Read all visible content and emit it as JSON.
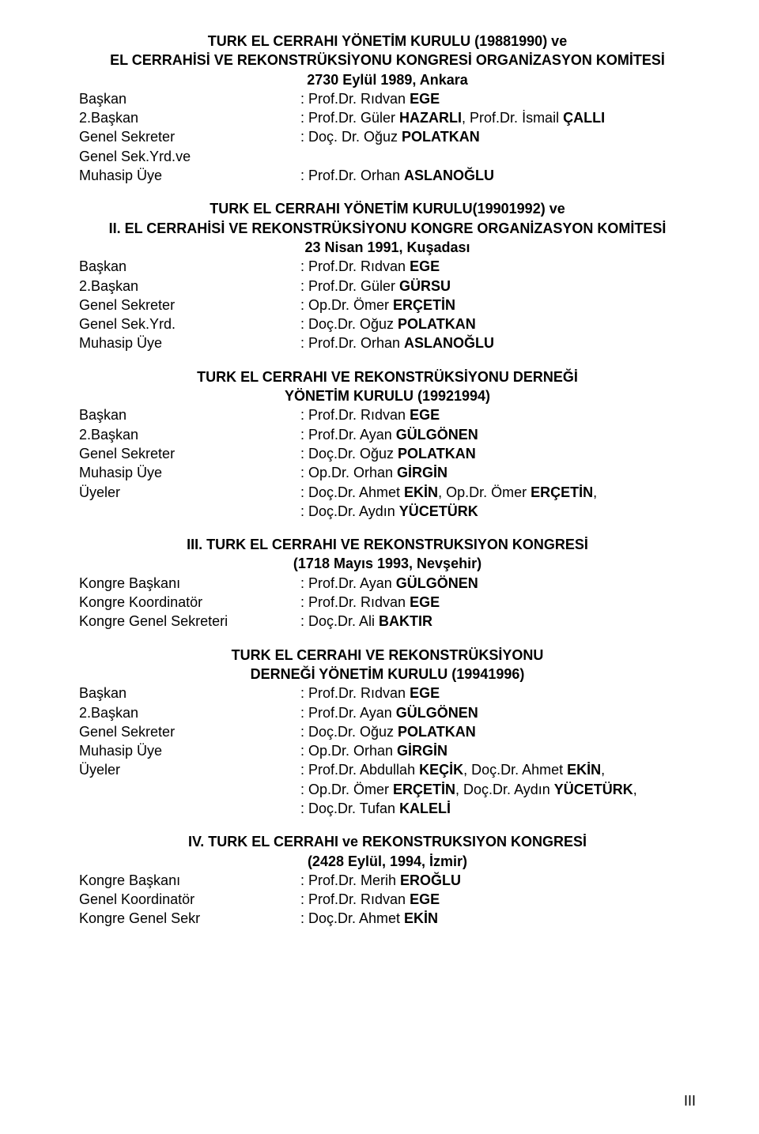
{
  "sections": [
    {
      "titles": [
        "TURK EL CERRAHI YÖNETİM KURULU (19881990) ve",
        "EL CERRAHİSİ VE REKONSTRÜKSİYONU KONGRESİ ORGANİZASYON KOMİTESİ",
        "2730 Eylül 1989, Ankara"
      ],
      "rows": [
        {
          "label": "Başkan",
          "prefix": ": Prof.Dr. Rıdvan ",
          "name": "EGE"
        },
        {
          "label": "2.Başkan",
          "prefix": ": Prof.Dr. Güler ",
          "name": "HAZARLI",
          ", Prof.Dr. İsmail ": true,
          "suffixName": "ÇALLI"
        },
        {
          "label": "Genel Sekreter",
          "prefix": ": Doç. Dr. Oğuz ",
          "name": "POLATKAN"
        },
        {
          "label": "Genel Sek.Yrd.ve",
          "prefix": "",
          "name": ""
        },
        {
          "label": "Muhasip Üye",
          "prefix": ": Prof.Dr. Orhan ",
          "name": "ASLANOĞLU"
        }
      ]
    },
    {
      "titles": [
        "TURK EL CERRAHI YÖNETİM KURULU(19901992) ve",
        "II. EL CERRAHİSİ VE REKONSTRÜKSİYONU KONGRE ORGANİZASYON KOMİTESİ",
        "23 Nisan 1991, Kuşadası"
      ],
      "rows": [
        {
          "label": "Başkan",
          "prefix": ": Prof.Dr. Rıdvan ",
          "name": "EGE"
        },
        {
          "label": "2.Başkan",
          "prefix": ": Prof.Dr. Güler ",
          "name": "GÜRSU"
        },
        {
          "label": "Genel Sekreter",
          "prefix": ": Op.Dr. Ömer ",
          "name": "ERÇETİN"
        },
        {
          "label": "Genel Sek.Yrd.",
          "prefix": ": Doç.Dr. Oğuz ",
          "name": "POLATKAN"
        },
        {
          "label": "Muhasip Üye",
          "prefix": ": Prof.Dr. Orhan ",
          "name": "ASLANOĞLU"
        }
      ]
    },
    {
      "titles": [
        "TURK EL CERRAHI VE REKONSTRÜKSİYONU DERNEĞİ",
        "YÖNETİM KURULU (19921994)"
      ],
      "rows": [
        {
          "label": "Başkan",
          "prefix": ": Prof.Dr. Rıdvan ",
          "name": "EGE"
        },
        {
          "label": "2.Başkan",
          "prefix": ": Prof.Dr. Ayan ",
          "name": "GÜLGÖNEN"
        },
        {
          "label": "Genel Sekreter",
          "prefix": ": Doç.Dr. Oğuz ",
          "name": "POLATKAN"
        },
        {
          "label": "Muhasip Üye",
          "prefix": ": Op.Dr. Orhan ",
          "name": "GİRGİN"
        },
        {
          "label": "Üyeler",
          "segments": [
            {
              "prefix": ": Doç.Dr. Ahmet ",
              "name": "EKİN"
            },
            {
              "prefix": ", Op.Dr. Ömer ",
              "name": "ERÇETİN"
            },
            {
              "prefix": ",",
              "name": ""
            }
          ]
        },
        {
          "label": "",
          "segments": [
            {
              "prefix": ": Doç.Dr. Aydın ",
              "name": "YÜCETÜRK"
            }
          ]
        }
      ]
    },
    {
      "titles": [
        "III. TURK EL CERRAHI VE REKONSTRUKSIYON KONGRESİ",
        "(1718 Mayıs 1993, Nevşehir)"
      ],
      "rows": [
        {
          "label": "Kongre Başkanı",
          "prefix": ": Prof.Dr. Ayan ",
          "name": "GÜLGÖNEN"
        },
        {
          "label": "Kongre Koordinatör",
          "prefix": ": Prof.Dr. Rıdvan ",
          "name": "EGE"
        },
        {
          "label": "Kongre Genel Sekreteri",
          "prefix": ": Doç.Dr. Ali ",
          "name": "BAKTIR"
        }
      ]
    },
    {
      "titles": [
        "TURK EL CERRAHI VE REKONSTRÜKSİYONU",
        "DERNEĞİ YÖNETİM KURULU (19941996)"
      ],
      "rows": [
        {
          "label": "Başkan",
          "prefix": ": Prof.Dr. Rıdvan ",
          "name": "EGE"
        },
        {
          "label": "2.Başkan",
          "prefix": ": Prof.Dr. Ayan ",
          "name": "GÜLGÖNEN"
        },
        {
          "label": "Genel Sekreter",
          "prefix": ": Doç.Dr. Oğuz ",
          "name": "POLATKAN"
        },
        {
          "label": "Muhasip Üye",
          "prefix": ": Op.Dr. Orhan ",
          "name": "GİRGİN"
        },
        {
          "label": "Üyeler",
          "segments": [
            {
              "prefix": ": Prof.Dr. Abdullah ",
              "name": "KEÇİK"
            },
            {
              "prefix": ", Doç.Dr. Ahmet ",
              "name": "EKİN"
            },
            {
              "prefix": ",",
              "name": ""
            }
          ]
        },
        {
          "label": "",
          "segments": [
            {
              "prefix": ": Op.Dr. Ömer ",
              "name": "ERÇETİN"
            },
            {
              "prefix": ", Doç.Dr. Aydın ",
              "name": "YÜCETÜRK"
            },
            {
              "prefix": ",",
              "name": ""
            }
          ]
        },
        {
          "label": "",
          "segments": [
            {
              "prefix": ": Doç.Dr. Tufan ",
              "name": "KALELİ"
            }
          ]
        }
      ]
    },
    {
      "titles": [
        "IV. TURK EL CERRAHI ve REKONSTRUKSIYON KONGRESİ",
        "(2428 Eylül, 1994, İzmir)"
      ],
      "rows": [
        {
          "label": "Kongre Başkanı",
          "prefix": ": Prof.Dr. Merih ",
          "name": "EROĞLU"
        },
        {
          "label": "Genel Koordinatör",
          "prefix": ": Prof.Dr. Rıdvan ",
          "name": "EGE"
        },
        {
          "label": "Kongre Genel Sekr",
          "prefix": ": Doç.Dr. Ahmet ",
          "name": "EKİN"
        }
      ]
    }
  ],
  "pageNumber": "III"
}
